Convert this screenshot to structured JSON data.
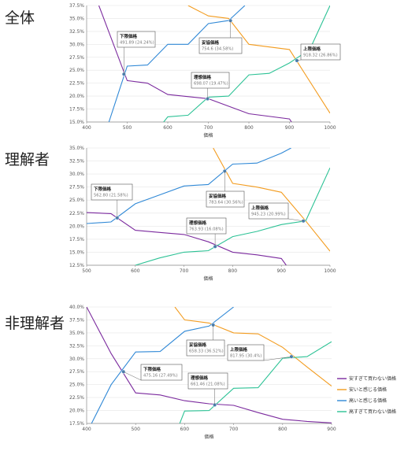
{
  "colors": {
    "too_cheap": "#7b2a9e",
    "cheap": "#f39c1f",
    "expensive": "#2f88d6",
    "too_expensive": "#2cc295",
    "grid": "#e6e6e6",
    "axis": "#888888",
    "marker": "#4a7fb0"
  },
  "legend": [
    {
      "key": "too_cheap",
      "label": "安すぎて買わない価格"
    },
    {
      "key": "cheap",
      "label": "安いと感じる価格"
    },
    {
      "key": "expensive",
      "label": "高いと感じる価格"
    },
    {
      "key": "too_expensive",
      "label": "高すぎて買わない価格"
    }
  ],
  "chart_data": [
    {
      "type": "line",
      "title": "全体",
      "xlabel": "価格",
      "xlim": [
        400,
        1000
      ],
      "ylim": [
        15.0,
        37.5
      ],
      "x_ticks": [
        "400",
        "500",
        "600",
        "700",
        "800",
        "900",
        "1000"
      ],
      "y_ticks": [
        "15.0%",
        "17.5%",
        "20.0%",
        "22.5%",
        "25.0%",
        "27.5%",
        "30.0%",
        "32.5%",
        "35.0%",
        "37.5%"
      ],
      "series": [
        {
          "key": "too_cheap",
          "name": "安すぎて買わない価格",
          "x": [
            430,
            500,
            550,
            600,
            700,
            800,
            900,
            905
          ],
          "y": [
            37.5,
            23.0,
            22.5,
            20.3,
            19.5,
            16.6,
            15.6,
            15.0
          ]
        },
        {
          "key": "cheap",
          "name": "安いと感じる価格",
          "x": [
            650,
            700,
            750,
            800,
            900,
            1000
          ],
          "y": [
            37.5,
            35.5,
            35.0,
            30.0,
            29.0,
            16.7
          ]
        },
        {
          "key": "expensive",
          "name": "高いと感じる価格",
          "x": [
            455,
            500,
            550,
            600,
            650,
            700,
            750,
            790
          ],
          "y": [
            15.0,
            25.8,
            26.0,
            30.0,
            30.0,
            34.0,
            34.6,
            37.5
          ]
        },
        {
          "key": "too_expensive",
          "name": "高すぎて買わない価格",
          "x": [
            590,
            600,
            650,
            700,
            750,
            800,
            850,
            900,
            950,
            1000
          ],
          "y": [
            15.0,
            16.0,
            16.3,
            19.8,
            20.0,
            24.1,
            24.4,
            26.4,
            29.0,
            37.5
          ]
        }
      ],
      "annotations": [
        {
          "title": "下限価格",
          "value": "491.89 (24.24%)",
          "x": 491.89,
          "y": 24.24
        },
        {
          "title": "妥協価格",
          "value": "754.6 (34.58%)",
          "x": 754.6,
          "y": 34.58
        },
        {
          "title": "上限価格",
          "value": "918.32 (26.86%)",
          "x": 918.32,
          "y": 26.86
        },
        {
          "title": "理想価格",
          "value": "698.07 (19.47%)",
          "x": 698.07,
          "y": 19.47
        }
      ]
    },
    {
      "type": "line",
      "title": "理解者",
      "xlabel": "価格",
      "xlim": [
        500,
        1000
      ],
      "ylim": [
        12.5,
        35.0
      ],
      "x_ticks": [
        "500",
        "600",
        "700",
        "800",
        "900",
        "1000"
      ],
      "y_ticks": [
        "12.5%",
        "15.0%",
        "17.5%",
        "20.0%",
        "22.5%",
        "25.0%",
        "27.5%",
        "30.0%",
        "32.5%",
        "35.0%"
      ],
      "series": [
        {
          "key": "too_cheap",
          "name": "安すぎて買わない価格",
          "x": [
            500,
            550,
            600,
            650,
            700,
            750,
            800,
            850,
            900,
            910
          ],
          "y": [
            22.6,
            22.4,
            19.2,
            18.8,
            18.4,
            17.0,
            15.0,
            14.5,
            13.8,
            12.5
          ]
        },
        {
          "key": "cheap",
          "name": "安いと感じる価格",
          "x": [
            760,
            800,
            850,
            900,
            950,
            1000
          ],
          "y": [
            35.0,
            28.2,
            27.5,
            26.5,
            21.0,
            15.2
          ]
        },
        {
          "key": "expensive",
          "name": "高いと感じる価格",
          "x": [
            500,
            550,
            600,
            650,
            700,
            750,
            800,
            850,
            900,
            920
          ],
          "y": [
            20.5,
            20.8,
            24.3,
            26.0,
            27.7,
            28.0,
            31.9,
            32.1,
            34.0,
            35.0
          ]
        },
        {
          "key": "too_expensive",
          "name": "高すぎて買わない価格",
          "x": [
            600,
            650,
            700,
            750,
            800,
            850,
            900,
            950,
            1000
          ],
          "y": [
            12.5,
            13.9,
            15.0,
            15.3,
            18.0,
            19.0,
            20.3,
            21.0,
            31.2
          ]
        }
      ],
      "annotations": [
        {
          "title": "下限価格",
          "value": "562.80 (21.58%)",
          "x": 562.8,
          "y": 21.58
        },
        {
          "title": "妥協価格",
          "value": "783.64 (30.56%)",
          "x": 783.64,
          "y": 30.56
        },
        {
          "title": "上限価格",
          "value": "945.23 (20.99%)",
          "x": 945.23,
          "y": 20.99
        },
        {
          "title": "理想価格",
          "value": "763.93 (16.08%)",
          "x": 763.93,
          "y": 16.08
        }
      ]
    },
    {
      "type": "line",
      "title": "非理解者",
      "xlabel": "価格",
      "xlim": [
        400,
        900
      ],
      "ylim": [
        17.5,
        40.0
      ],
      "x_ticks": [
        "400",
        "500",
        "600",
        "700",
        "800",
        "900"
      ],
      "y_ticks": [
        "17.5%",
        "20.0%",
        "22.5%",
        "25.0%",
        "27.5%",
        "30.0%",
        "32.5%",
        "35.0%",
        "37.5%",
        "40.0%"
      ],
      "series": [
        {
          "key": "too_cheap",
          "name": "安すぎて買わない価格",
          "x": [
            400,
            450,
            500,
            550,
            600,
            650,
            700,
            750,
            800,
            850,
            900
          ],
          "y": [
            40.0,
            31.0,
            23.4,
            23.0,
            21.9,
            21.3,
            21.0,
            19.6,
            18.3,
            17.9,
            17.6
          ]
        },
        {
          "key": "cheap",
          "name": "安いと感じる価格",
          "x": [
            580,
            600,
            650,
            700,
            750,
            800,
            850,
            900
          ],
          "y": [
            40.0,
            37.5,
            36.9,
            35.0,
            34.8,
            32.2,
            28.4,
            24.7
          ]
        },
        {
          "key": "expensive",
          "name": "高いと感じる価格",
          "x": [
            410,
            450,
            500,
            550,
            600,
            650,
            700
          ],
          "y": [
            17.5,
            25.0,
            31.3,
            31.4,
            35.3,
            36.3,
            40.0
          ]
        },
        {
          "key": "too_expensive",
          "name": "高すぎて買わない価格",
          "x": [
            590,
            600,
            650,
            700,
            750,
            800,
            850,
            900
          ],
          "y": [
            17.5,
            19.9,
            20.0,
            24.3,
            24.4,
            30.1,
            30.4,
            33.3
          ]
        }
      ],
      "annotations": [
        {
          "title": "下限価格",
          "value": "475.16 (27.49%)",
          "x": 475.16,
          "y": 27.49
        },
        {
          "title": "妥協価格",
          "value": "658.33 (36.52%)",
          "x": 658.33,
          "y": 36.52
        },
        {
          "title": "上限価格",
          "value": "817.95 (30.4%)",
          "x": 817.95,
          "y": 30.4
        },
        {
          "title": "理想価格",
          "value": "661.46 (21.08%)",
          "x": 661.46,
          "y": 21.08
        }
      ]
    }
  ]
}
